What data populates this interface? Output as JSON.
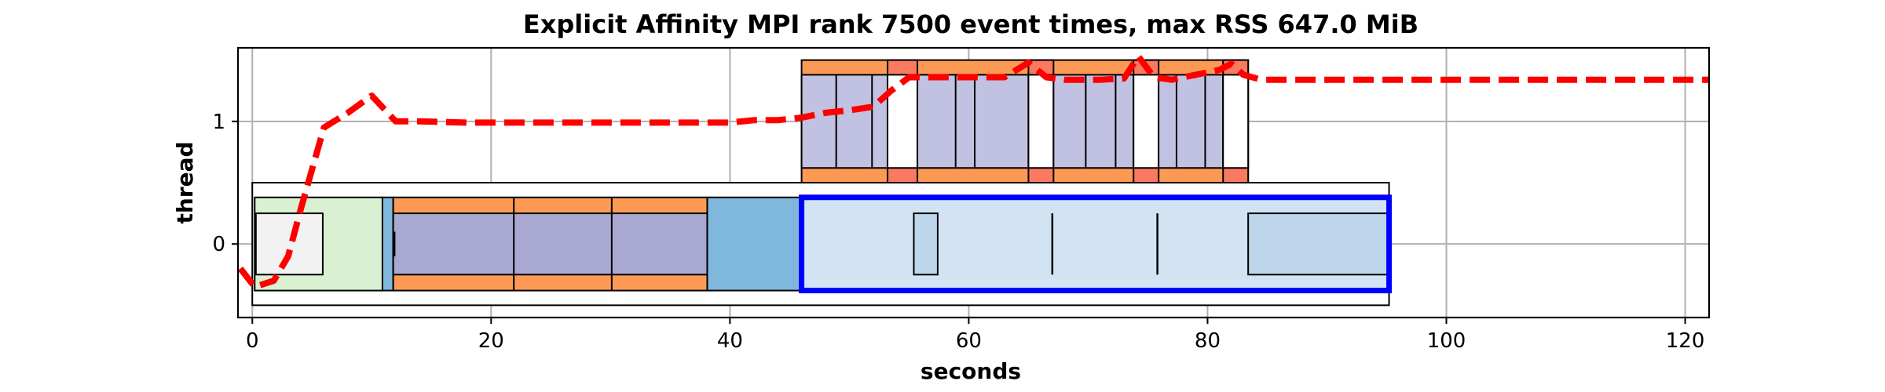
{
  "chart_data": {
    "type": "timeline",
    "title": "Explicit Affinity MPI rank 7500 event times, max RSS 647.0 MiB",
    "xlabel": "seconds",
    "ylabel": "thread",
    "xlim": [
      -1.2,
      122
    ],
    "ylim": [
      -0.6,
      1.6
    ],
    "grid": true,
    "x_ticks": [
      0,
      20,
      40,
      60,
      80,
      100,
      120
    ],
    "y_ticks": [
      0,
      1
    ],
    "colors": {
      "green": "#d9f0d3",
      "gray": "#f2f2f2",
      "blue": "#7fb8dc",
      "orange": "#fc9a55",
      "purple": "#a9a8d0",
      "light_blue": "#d2e4f3",
      "mid_blue": "#bed6eb",
      "lavender": "#c1c1e1",
      "salmon": "#f97a61",
      "highlight": "#0000ff",
      "rss": "#ff0000"
    },
    "boxes": [
      {
        "name": "thread-0-outer",
        "x0": 0,
        "x1": 95.2,
        "y0": -0.5,
        "y1": 0.5,
        "color": "white"
      },
      {
        "name": "green-phase",
        "x0": 0.2,
        "x1": 10.9,
        "y0": -0.38,
        "y1": 0.38,
        "color": "green"
      },
      {
        "name": "gray-phase",
        "x0": 0.3,
        "x1": 5.9,
        "y0": -0.25,
        "y1": 0.25,
        "color": "gray"
      },
      {
        "name": "blue-narrow-phase",
        "x0": 10.9,
        "x1": 11.8,
        "y0": -0.38,
        "y1": 0.38,
        "color": "blue"
      },
      {
        "name": "orange-phase",
        "x0": 11.8,
        "x1": 38.1,
        "y0": -0.38,
        "y1": 0.38,
        "color": "orange"
      },
      {
        "name": "purple-phase",
        "x0": 11.8,
        "x1": 38.1,
        "y0": -0.25,
        "y1": 0.25,
        "color": "purple"
      },
      {
        "name": "blue-phase",
        "x0": 38.1,
        "x1": 46.0,
        "y0": -0.38,
        "y1": 0.38,
        "color": "blue"
      },
      {
        "name": "light-blue-phase",
        "x0": 46.0,
        "x1": 95.2,
        "y0": -0.38,
        "y1": 0.38,
        "color": "light_blue"
      },
      {
        "name": "light-blue-small-box",
        "x0": 55.4,
        "x1": 57.4,
        "y0": -0.25,
        "y1": 0.25,
        "color": "mid_blue"
      },
      {
        "name": "light-blue-end-box",
        "x0": 83.4,
        "x1": 95.2,
        "y0": -0.25,
        "y1": 0.25,
        "color": "mid_blue"
      },
      {
        "name": "thread-1-outer",
        "x0": 46.0,
        "x1": 83.4,
        "y0": 0.5,
        "y1": 1.5,
        "color": "orange"
      },
      {
        "name": "t1-segment-1",
        "x0": 46.0,
        "x1": 53.2,
        "y0": 0.62,
        "y1": 1.38,
        "color": "lavender"
      },
      {
        "name": "t1-segment-2",
        "x0": 53.2,
        "x1": 55.7,
        "y0": 0.5,
        "y1": 1.5,
        "color": "salmon"
      },
      {
        "name": "t1-segment-3",
        "x0": 53.2,
        "x1": 55.7,
        "y0": 0.62,
        "y1": 1.38,
        "color": "white"
      },
      {
        "name": "t1-segment-4",
        "x0": 55.7,
        "x1": 65.0,
        "y0": 0.62,
        "y1": 1.38,
        "color": "lavender"
      },
      {
        "name": "t1-segment-5",
        "x0": 65.0,
        "x1": 67.1,
        "y0": 0.5,
        "y1": 1.5,
        "color": "salmon"
      },
      {
        "name": "t1-segment-6",
        "x0": 65.0,
        "x1": 67.1,
        "y0": 0.62,
        "y1": 1.38,
        "color": "white"
      },
      {
        "name": "t1-segment-7",
        "x0": 67.1,
        "x1": 73.8,
        "y0": 0.62,
        "y1": 1.38,
        "color": "lavender"
      },
      {
        "name": "t1-segment-8",
        "x0": 73.8,
        "x1": 75.9,
        "y0": 0.5,
        "y1": 1.5,
        "color": "salmon"
      },
      {
        "name": "t1-segment-9",
        "x0": 73.8,
        "x1": 75.9,
        "y0": 0.62,
        "y1": 1.38,
        "color": "white"
      },
      {
        "name": "t1-segment-10",
        "x0": 75.9,
        "x1": 81.3,
        "y0": 0.62,
        "y1": 1.38,
        "color": "lavender"
      },
      {
        "name": "t1-segment-11",
        "x0": 81.3,
        "x1": 83.4,
        "y0": 0.5,
        "y1": 1.5,
        "color": "salmon"
      },
      {
        "name": "t1-segment-12",
        "x0": 81.3,
        "x1": 83.4,
        "y0": 0.62,
        "y1": 1.38,
        "color": "white"
      }
    ],
    "dividers": [
      {
        "x": 21.9,
        "y0": -0.38,
        "y1": 0.38
      },
      {
        "x": 30.1,
        "y0": -0.38,
        "y1": 0.38
      },
      {
        "x": 48.9,
        "y0": 0.62,
        "y1": 1.38
      },
      {
        "x": 51.9,
        "y0": 0.62,
        "y1": 1.38
      },
      {
        "x": 58.9,
        "y0": 0.62,
        "y1": 1.38
      },
      {
        "x": 60.5,
        "y0": 0.62,
        "y1": 1.38
      },
      {
        "x": 69.8,
        "y0": 0.62,
        "y1": 1.38
      },
      {
        "x": 72.3,
        "y0": 0.62,
        "y1": 1.38
      },
      {
        "x": 77.4,
        "y0": 0.62,
        "y1": 1.38
      },
      {
        "x": 79.8,
        "y0": 0.62,
        "y1": 1.38
      }
    ],
    "event_markers": [
      {
        "x": 11.9,
        "y0": -0.1,
        "y1": 0.1
      },
      {
        "x": 67.0,
        "y0": -0.25,
        "y1": 0.25
      },
      {
        "x": 75.8,
        "y0": -0.25,
        "y1": 0.25
      }
    ],
    "highlight_box": {
      "x0": 46.0,
      "x1": 95.2,
      "y0": -0.38,
      "y1": 0.38
    },
    "series": [
      {
        "x": [
          -1.0,
          0.2,
          1.8,
          3.0,
          4.1,
          6.0,
          8.0,
          10.0,
          12.0,
          14.0,
          18.0,
          22.0,
          26.0,
          30.0,
          34.0,
          38.0,
          40.0,
          42.0,
          44.0,
          46.0,
          48.0,
          50.0,
          52.0,
          53.5,
          55.0,
          57.0,
          60.0,
          63.0,
          65.0,
          66.5,
          68.0,
          71.0,
          73.0,
          74.2,
          75.5,
          77.0,
          79.0,
          81.0,
          82.0,
          83.0,
          84.5,
          90.0,
          100.0,
          110.0,
          120.0,
          122.0
        ],
        "y": [
          -0.2,
          -0.35,
          -0.3,
          -0.1,
          0.3,
          0.95,
          1.07,
          1.21,
          1.0,
          1.0,
          0.99,
          0.99,
          0.99,
          0.99,
          0.99,
          0.99,
          0.99,
          1.01,
          1.01,
          1.03,
          1.07,
          1.09,
          1.12,
          1.25,
          1.36,
          1.36,
          1.36,
          1.36,
          1.48,
          1.36,
          1.34,
          1.34,
          1.35,
          1.53,
          1.36,
          1.34,
          1.38,
          1.42,
          1.47,
          1.38,
          1.34,
          1.34,
          1.34,
          1.34,
          1.34,
          1.34
        ]
      }
    ]
  }
}
